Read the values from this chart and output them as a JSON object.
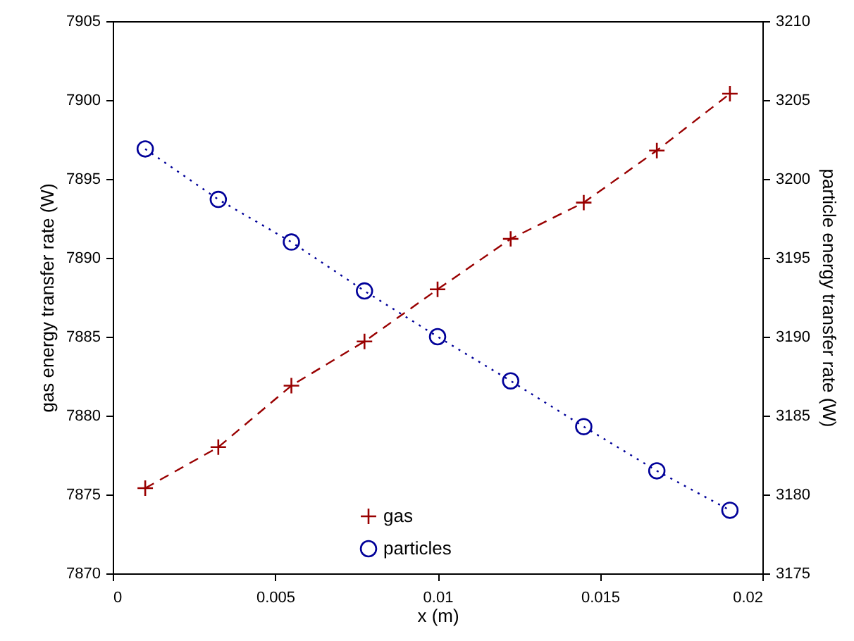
{
  "chart_data": {
    "type": "line",
    "xlabel": "x (m)",
    "ylabel": "gas energy transfer rate (W)",
    "y2label": "particle energy transfer rate (W)",
    "x": [
      0.001,
      0.00325,
      0.0055,
      0.00775,
      0.01,
      0.01225,
      0.0145,
      0.01675,
      0.019
    ],
    "xlim": [
      0,
      0.02
    ],
    "xticks": [
      0,
      0.005,
      0.01,
      0.015,
      0.02
    ],
    "ylim": [
      7870,
      7905
    ],
    "yticks": [
      7870,
      7875,
      7880,
      7885,
      7890,
      7895,
      7900,
      7905
    ],
    "y2lim": [
      3175,
      3210
    ],
    "y2ticks": [
      3175,
      3180,
      3185,
      3190,
      3195,
      3200,
      3205,
      3210
    ],
    "grid": false,
    "legend": "bottom",
    "series": [
      {
        "name": "gas",
        "color": "#990000",
        "marker": "cross",
        "line_style": "dashed",
        "values": [
          7875.4,
          7878.0,
          7881.9,
          7884.7,
          7888.0,
          7891.2,
          7893.5,
          7896.8,
          7900.4
        ]
      },
      {
        "name": "particles",
        "color": "#000099",
        "marker": "circle",
        "line_style": "dotted",
        "axis": "y2",
        "values": [
          3201.9,
          3198.7,
          3196.0,
          3192.9,
          3190.0,
          3187.2,
          3184.3,
          3181.5,
          3179.0
        ]
      }
    ]
  }
}
